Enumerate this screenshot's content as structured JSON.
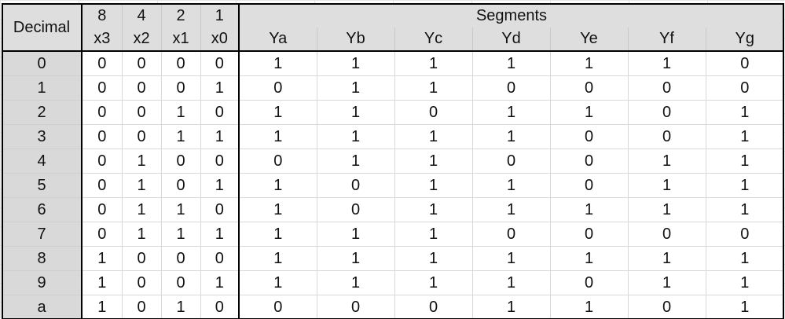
{
  "header": {
    "decimal_label": "Decimal",
    "segments_label": "Segments",
    "weights": [
      "8",
      "4",
      "2",
      "1"
    ],
    "inputs": [
      "x3",
      "x2",
      "x1",
      "x0"
    ],
    "outputs": [
      "Ya",
      "Yb",
      "Yc",
      "Yd",
      "Ye",
      "Yf",
      "Yg"
    ]
  },
  "rows": [
    {
      "decimal": "0",
      "inputs": [
        "0",
        "0",
        "0",
        "0"
      ],
      "outputs": [
        "1",
        "1",
        "1",
        "1",
        "1",
        "1",
        "0"
      ]
    },
    {
      "decimal": "1",
      "inputs": [
        "0",
        "0",
        "0",
        "1"
      ],
      "outputs": [
        "0",
        "1",
        "1",
        "0",
        "0",
        "0",
        "0"
      ]
    },
    {
      "decimal": "2",
      "inputs": [
        "0",
        "0",
        "1",
        "0"
      ],
      "outputs": [
        "1",
        "1",
        "0",
        "1",
        "1",
        "0",
        "1"
      ]
    },
    {
      "decimal": "3",
      "inputs": [
        "0",
        "0",
        "1",
        "1"
      ],
      "outputs": [
        "1",
        "1",
        "1",
        "1",
        "0",
        "0",
        "1"
      ]
    },
    {
      "decimal": "4",
      "inputs": [
        "0",
        "1",
        "0",
        "0"
      ],
      "outputs": [
        "0",
        "1",
        "1",
        "0",
        "0",
        "1",
        "1"
      ]
    },
    {
      "decimal": "5",
      "inputs": [
        "0",
        "1",
        "0",
        "1"
      ],
      "outputs": [
        "1",
        "0",
        "1",
        "1",
        "0",
        "1",
        "1"
      ]
    },
    {
      "decimal": "6",
      "inputs": [
        "0",
        "1",
        "1",
        "0"
      ],
      "outputs": [
        "1",
        "0",
        "1",
        "1",
        "1",
        "1",
        "1"
      ]
    },
    {
      "decimal": "7",
      "inputs": [
        "0",
        "1",
        "1",
        "1"
      ],
      "outputs": [
        "1",
        "1",
        "1",
        "0",
        "0",
        "0",
        "0"
      ]
    },
    {
      "decimal": "8",
      "inputs": [
        "1",
        "0",
        "0",
        "0"
      ],
      "outputs": [
        "1",
        "1",
        "1",
        "1",
        "1",
        "1",
        "1"
      ]
    },
    {
      "decimal": "9",
      "inputs": [
        "1",
        "0",
        "0",
        "1"
      ],
      "outputs": [
        "1",
        "1",
        "1",
        "1",
        "0",
        "1",
        "1"
      ]
    },
    {
      "decimal": "a",
      "inputs": [
        "1",
        "0",
        "1",
        "0"
      ],
      "outputs": [
        "0",
        "0",
        "0",
        "1",
        "1",
        "0",
        "1"
      ]
    }
  ]
}
